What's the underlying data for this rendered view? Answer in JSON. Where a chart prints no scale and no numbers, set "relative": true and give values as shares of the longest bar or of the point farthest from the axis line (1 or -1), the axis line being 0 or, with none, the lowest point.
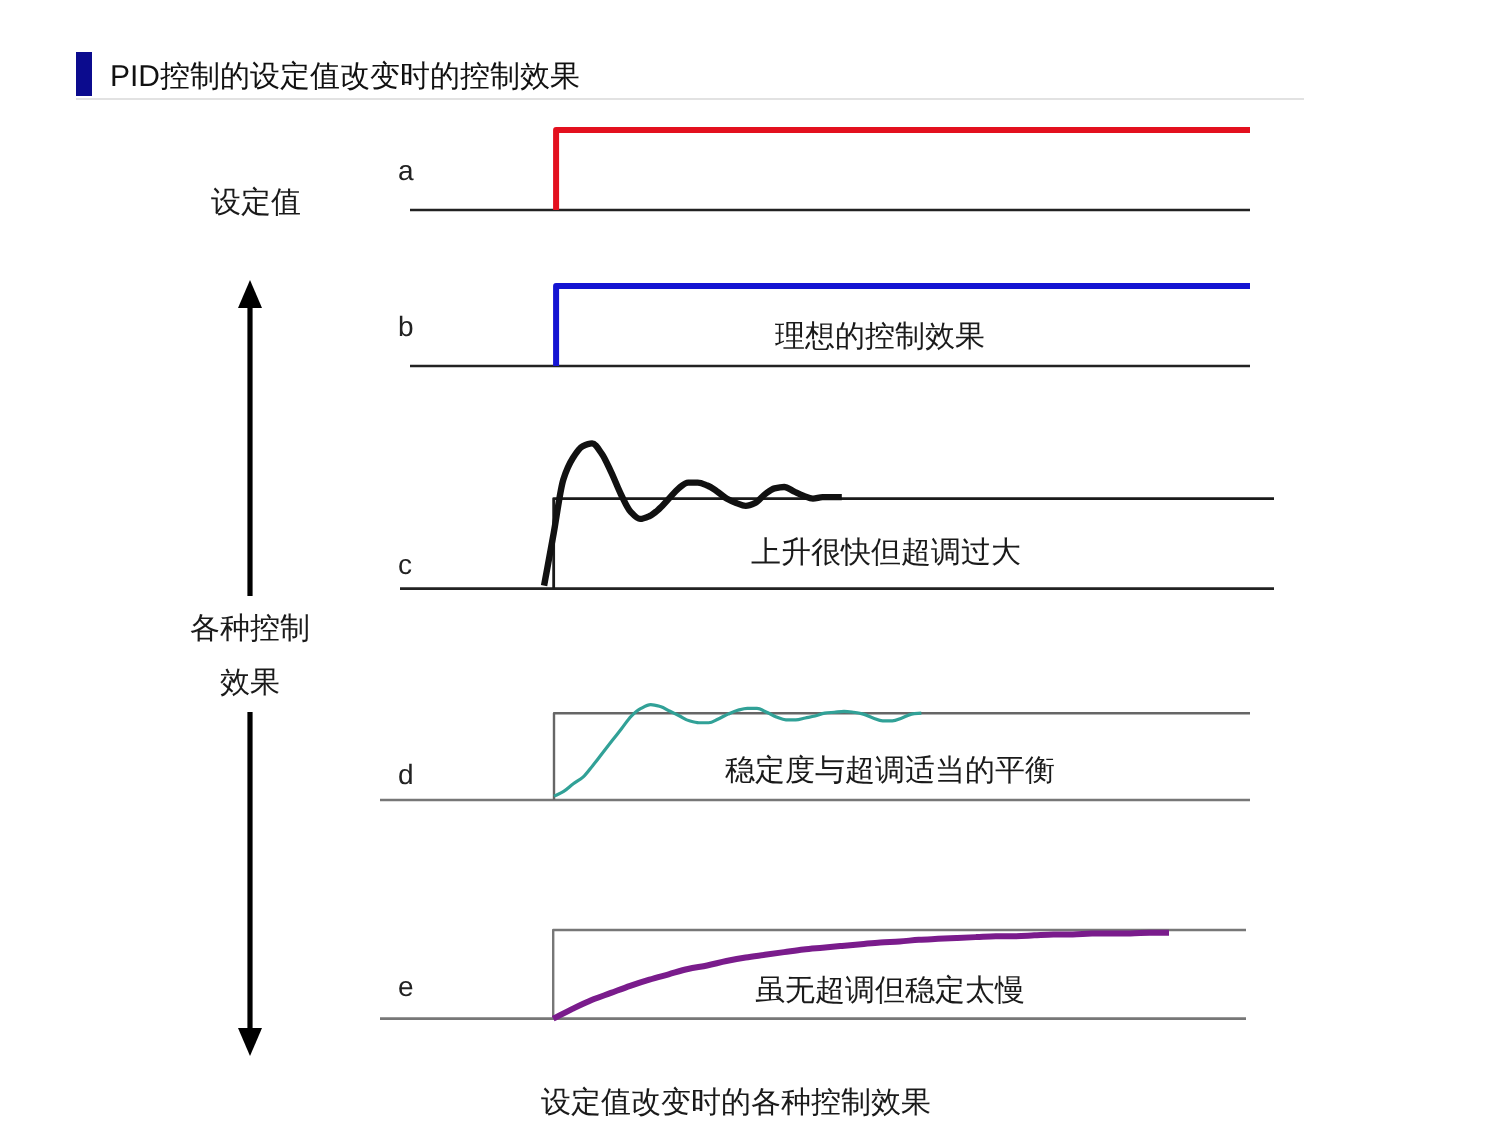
{
  "chart_data": [
    {
      "type": "step",
      "title": "PID控制的设定值改变时的控制效果",
      "ylabel": "a",
      "relative": true,
      "categories": [
        null,
        null,
        null,
        null,
        null,
        null,
        null,
        null,
        null,
        null,
        null,
        null,
        null,
        null,
        null,
        null,
        null,
        null,
        null,
        null,
        null,
        null,
        null,
        null
      ],
      "series": [
        {
          "color": "#e3101e",
          "values": [
            null,
            null,
            null,
            null,
            0,
            1,
            1,
            1,
            1,
            1,
            1,
            1,
            1,
            1,
            1,
            1,
            1,
            1,
            1,
            1,
            1,
            1,
            1,
            1
          ]
        }
      ],
      "annotations": [
        "设定值"
      ]
    },
    {
      "type": "step",
      "ylabel": "b",
      "relative": true,
      "categories": [
        null,
        null,
        null,
        null,
        null,
        null,
        null,
        null,
        null,
        null,
        null,
        null,
        null,
        null,
        null,
        null,
        null,
        null,
        null,
        null,
        null,
        null,
        null,
        null
      ],
      "series": [
        {
          "color": "#1414d2",
          "values": [
            null,
            null,
            null,
            null,
            0,
            1,
            1,
            1,
            1,
            1,
            1,
            1,
            1,
            1,
            1,
            1,
            1,
            1,
            1,
            1,
            1,
            1,
            1,
            1
          ]
        }
      ],
      "annotations": [
        "理想的控制效果"
      ]
    },
    {
      "type": "line",
      "ylabel": "c",
      "relative": true,
      "categories": [
        null,
        null,
        null,
        null,
        null,
        null,
        null,
        null,
        null,
        null,
        null,
        null,
        null,
        null,
        null,
        null,
        null,
        null,
        null,
        null,
        null,
        null,
        null,
        null,
        null,
        null,
        null,
        null,
        null,
        null,
        null,
        null,
        null,
        null,
        null,
        null,
        null,
        null,
        null,
        null,
        null,
        null,
        null,
        null,
        null,
        null,
        null,
        null,
        null,
        null,
        null,
        null,
        null,
        null,
        null,
        null,
        null,
        null,
        null,
        null,
        null,
        null,
        null,
        null,
        null,
        null,
        null,
        null,
        null,
        null,
        null,
        null,
        null,
        null,
        null,
        null,
        null,
        null,
        null,
        null,
        null,
        null,
        null,
        null,
        null,
        null,
        null,
        null,
        null,
        null,
        null,
        null
      ],
      "series": [
        {
          "type": "step",
          "color": "#1a1a1a",
          "values": [
            null,
            null,
            null,
            null,
            null,
            null,
            null,
            null,
            null,
            null,
            null,
            null,
            null,
            null,
            null,
            null,
            0,
            0.62,
            0.62,
            0.62,
            0.62,
            0.62,
            0.62,
            0.62,
            0.62,
            0.62,
            0.62,
            0.62,
            0.62,
            0.62,
            0.62,
            0.62,
            0.62,
            0.62,
            0.62,
            0.62,
            0.62,
            0.62,
            0.62,
            0.62,
            0.62,
            0.62,
            0.62,
            0.62,
            0.62,
            0.62,
            0.62,
            0.62,
            0.62,
            0.62,
            0.62,
            0.62,
            0.62,
            0.62,
            0.62,
            0.62,
            0.62,
            0.62,
            0.62,
            0.62,
            0.62,
            0.62,
            0.62,
            0.62,
            0.62,
            0.62,
            0.62,
            0.62,
            0.62,
            0.62,
            0.62,
            0.62,
            0.62,
            0.62,
            0.62,
            0.62,
            0.62,
            0.62,
            0.62,
            0.62,
            0.62,
            0.62,
            0.62,
            0.62,
            0.62,
            0.62,
            0.62,
            0.62,
            0.62,
            0.62,
            0.62,
            0.62
          ]
        },
        {
          "color": "#111111",
          "values": [
            null,
            null,
            null,
            null,
            null,
            null,
            null,
            null,
            null,
            null,
            null,
            null,
            null,
            null,
            null,
            0.02,
            0.38,
            0.75,
            0.9,
            0.98,
            1,
            0.93,
            0.8,
            0.65,
            0.53,
            0.48,
            0.5,
            0.55,
            0.62,
            0.69,
            0.73,
            0.73,
            0.71,
            0.67,
            0.62,
            0.59,
            0.57,
            0.59,
            0.65,
            0.69,
            0.7,
            0.67,
            0.64,
            0.62,
            0.63,
            0.63,
            0.63,
            null,
            null,
            null,
            null,
            null,
            null,
            null,
            null,
            null,
            null,
            null,
            null,
            null,
            null,
            null,
            null,
            null,
            null,
            null,
            null,
            null,
            null,
            null,
            null,
            null,
            null,
            null,
            null,
            null,
            null,
            null,
            null,
            null,
            null,
            null,
            null,
            null,
            null,
            null,
            null,
            null,
            null,
            null,
            null,
            null
          ]
        }
      ],
      "annotations": [
        "上升很快但超调过大",
        "各种控制效果"
      ]
    },
    {
      "type": "line",
      "ylabel": "d",
      "relative": true,
      "categories": [
        null,
        null,
        null,
        null,
        null,
        null,
        null,
        null,
        null,
        null,
        null,
        null,
        null,
        null,
        null,
        null,
        null,
        null,
        null,
        null,
        null,
        null,
        null,
        null,
        null,
        null,
        null,
        null,
        null,
        null,
        null,
        null,
        null,
        null,
        null,
        null,
        null,
        null,
        null,
        null,
        null,
        null,
        null,
        null,
        null,
        null,
        null,
        null,
        null,
        null,
        null,
        null,
        null,
        null,
        null,
        null,
        null,
        null,
        null,
        null,
        null,
        null,
        null,
        null,
        null,
        null,
        null,
        null,
        null,
        null,
        null,
        null,
        null,
        null,
        null,
        null,
        null,
        null,
        null,
        null,
        null,
        null,
        null,
        null,
        null,
        null,
        null,
        null,
        null,
        null,
        null
      ],
      "series": [
        {
          "type": "step",
          "color": "#666666",
          "values": [
            null,
            null,
            null,
            null,
            null,
            null,
            null,
            null,
            null,
            null,
            null,
            null,
            null,
            null,
            null,
            null,
            null,
            null,
            0,
            0.91,
            0.91,
            0.91,
            0.91,
            0.91,
            0.91,
            0.91,
            0.91,
            0.91,
            0.91,
            0.91,
            0.91,
            0.91,
            0.91,
            0.91,
            0.91,
            0.91,
            0.91,
            0.91,
            0.91,
            0.91,
            0.91,
            0.91,
            0.91,
            0.91,
            0.91,
            0.91,
            0.91,
            0.91,
            0.91,
            0.91,
            0.91,
            0.91,
            0.91,
            0.91,
            0.91,
            0.91,
            0.91,
            0.91,
            0.91,
            0.91,
            0.91,
            0.91,
            0.91,
            0.91,
            0.91,
            0.91,
            0.91,
            0.91,
            0.91,
            0.91,
            0.91,
            0.91,
            0.91,
            0.91,
            0.91,
            0.91,
            0.91,
            0.91,
            0.91,
            0.91,
            0.91,
            0.91,
            0.91,
            0.91,
            0.91,
            0.91,
            0.91,
            0.91,
            0.91,
            0.91,
            0.91
          ]
        },
        {
          "color": "#31a197",
          "values": [
            null,
            null,
            null,
            null,
            null,
            null,
            null,
            null,
            null,
            null,
            null,
            null,
            null,
            null,
            null,
            null,
            null,
            null,
            0.04,
            0.09,
            0.17,
            0.24,
            0.36,
            0.49,
            0.62,
            0.75,
            0.88,
            0.96,
            1,
            0.98,
            0.93,
            0.88,
            0.83,
            0.81,
            0.81,
            0.85,
            0.9,
            0.94,
            0.96,
            0.96,
            0.92,
            0.87,
            0.84,
            0.84,
            0.86,
            0.88,
            0.91,
            0.92,
            0.93,
            0.92,
            0.9,
            0.86,
            0.83,
            0.83,
            0.86,
            0.9,
            0.91,
            null,
            null,
            null,
            null,
            null,
            null,
            null,
            null,
            null,
            null,
            null,
            null,
            null,
            null,
            null,
            null,
            null,
            null,
            null,
            null,
            null,
            null,
            null,
            null,
            null,
            null,
            null,
            null,
            null,
            null,
            null,
            null,
            null,
            null
          ]
        }
      ],
      "annotations": [
        "稳定度与超调适当的平衡"
      ]
    },
    {
      "type": "line",
      "ylabel": "e",
      "relative": true,
      "categories": [
        null,
        null,
        null,
        null,
        null,
        null,
        null,
        null,
        null,
        null,
        null,
        null,
        null,
        null,
        null,
        null,
        null,
        null,
        null,
        null,
        null,
        null,
        null,
        null,
        null,
        null,
        null,
        null,
        null,
        null,
        null,
        null,
        null,
        null,
        null,
        null,
        null,
        null,
        null,
        null,
        null,
        null,
        null,
        null,
        null,
        null
      ],
      "series": [
        {
          "type": "step",
          "color": "#777777",
          "values": [
            null,
            null,
            null,
            null,
            null,
            null,
            null,
            null,
            null,
            0,
            1,
            1,
            1,
            1,
            1,
            1,
            1,
            1,
            1,
            1,
            1,
            1,
            1,
            1,
            1,
            1,
            1,
            1,
            1,
            1,
            1,
            1,
            1,
            1,
            1,
            1,
            1,
            1,
            1,
            1,
            1,
            1,
            1,
            1,
            1,
            1
          ]
        },
        {
          "color": "#7a1c8c",
          "values": [
            null,
            null,
            null,
            null,
            null,
            null,
            null,
            null,
            null,
            0,
            0.11,
            0.21,
            0.29,
            0.37,
            0.44,
            0.5,
            0.56,
            0.6,
            0.65,
            0.69,
            0.72,
            0.75,
            0.78,
            0.8,
            0.82,
            0.84,
            0.86,
            0.87,
            0.89,
            0.9,
            0.91,
            0.92,
            0.93,
            0.93,
            0.94,
            0.95,
            0.95,
            0.96,
            0.96,
            0.96,
            0.97,
            0.97,
            null,
            null,
            null,
            null
          ]
        }
      ],
      "annotations": [
        "虽无超调但稳定太慢",
        "设定值改变时的各种控制效果"
      ]
    }
  ]
}
